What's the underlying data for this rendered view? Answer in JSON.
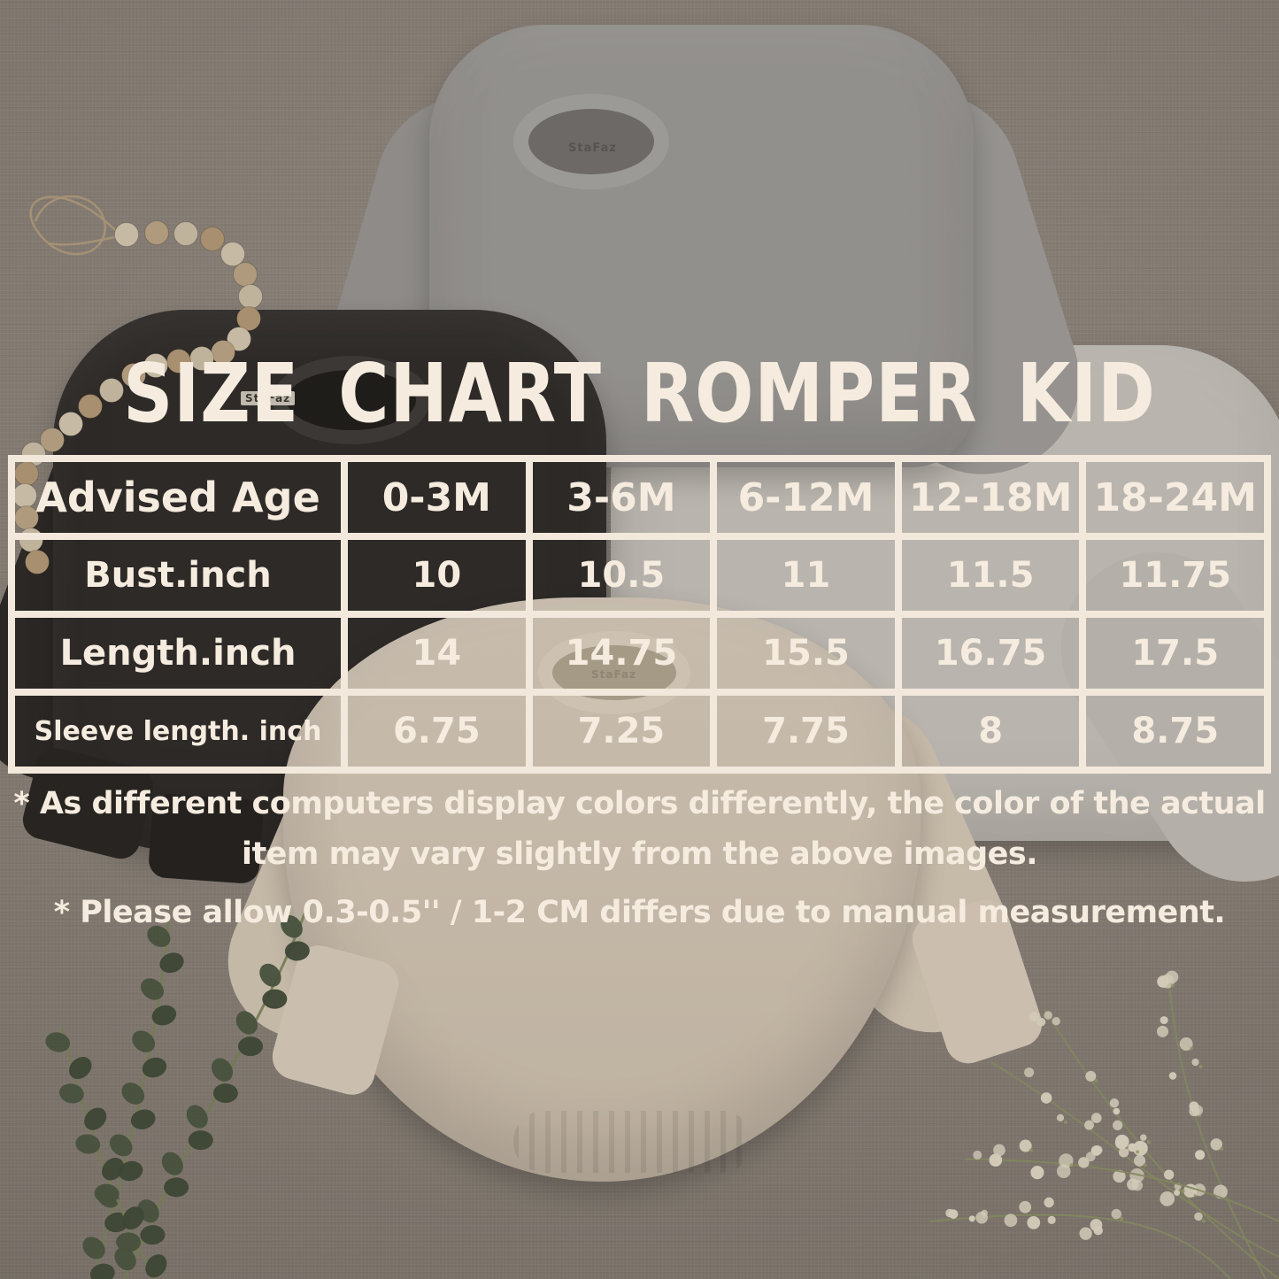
{
  "title": "SIZE CHART ROMPER KID",
  "brand": "StaFaz",
  "size_table": {
    "header_label": "Advised Age",
    "sizes": [
      "0-3M",
      "3-6M",
      "6-12M",
      "12-18M",
      "18-24M"
    ],
    "rows": [
      {
        "label": "Bust.inch",
        "values": [
          "10",
          "10.5",
          "11",
          "11.5",
          "11.75"
        ]
      },
      {
        "label": "Length.inch",
        "values": [
          "14",
          "14.75",
          "15.5",
          "16.75",
          "17.5"
        ]
      },
      {
        "label": "Sleeve length. inch",
        "values": [
          "6.75",
          "7.25",
          "7.75",
          "8",
          "8.75"
        ]
      }
    ]
  },
  "notes": [
    "* As different computers display colors differently, the color of the actual item may vary slightly from the above images.",
    "* Please allow 0.3-0.5'' / 1-2 CM differs due to manual measurement."
  ],
  "colors": {
    "text_cream": "#f5ecdf",
    "table_border": "#f2e9dc",
    "fabric_taupe": "#8e857b",
    "romper_gray": "#9d9b98",
    "romper_black": "#2d2a28",
    "romper_white": "#c8c4bd",
    "romper_cream": "#d5c9b8",
    "eucalyptus_green": "#3e4936",
    "babys_breath": "#e4dcc8"
  }
}
